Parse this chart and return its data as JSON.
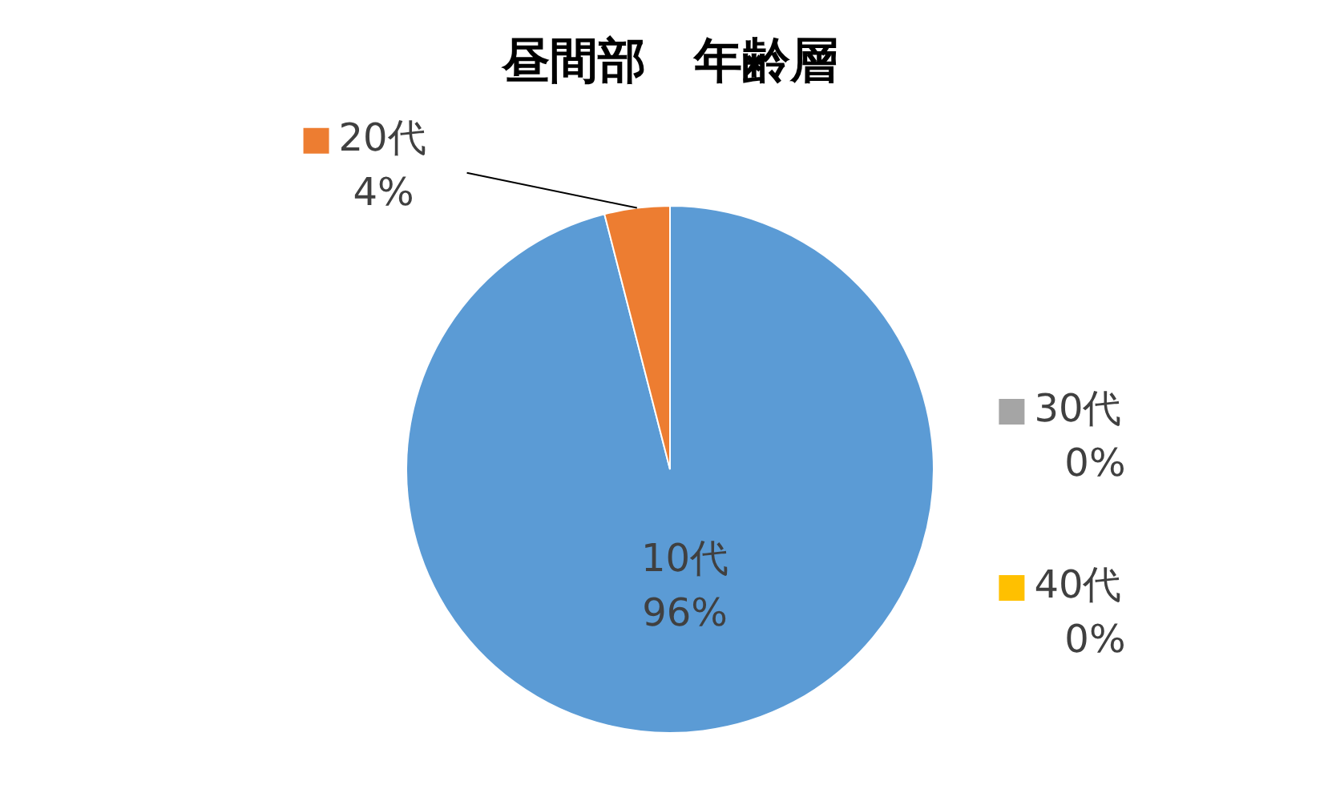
{
  "chart_data": {
    "type": "pie",
    "title": "昼間部　年齢層",
    "categories": [
      "10代",
      "20代",
      "30代",
      "40代"
    ],
    "values": [
      96,
      4,
      0,
      0
    ],
    "value_labels": [
      "96%",
      "4%",
      "0%",
      "0%"
    ],
    "colors": [
      "#5b9bd5",
      "#ed7d31",
      "#a5a5a5",
      "#ffc000"
    ],
    "legend": "right"
  }
}
